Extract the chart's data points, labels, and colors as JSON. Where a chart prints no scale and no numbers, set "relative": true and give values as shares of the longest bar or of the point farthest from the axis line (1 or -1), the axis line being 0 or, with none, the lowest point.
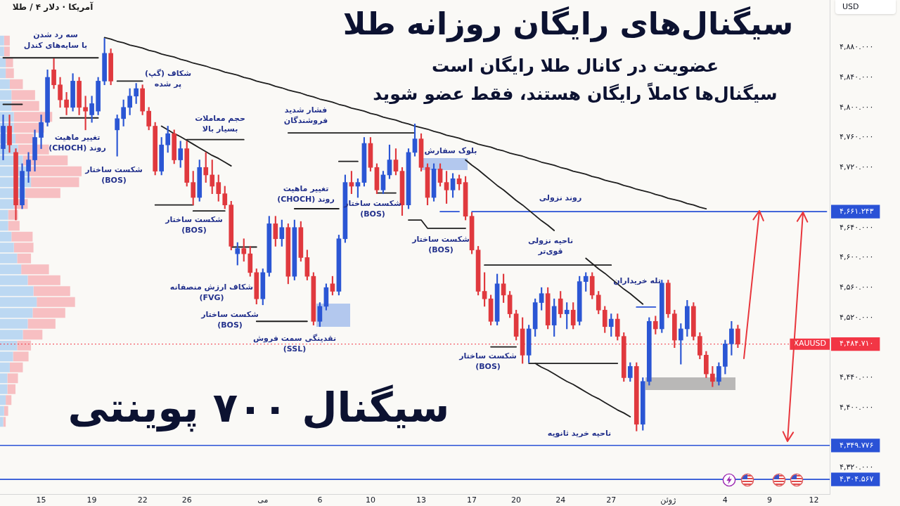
{
  "chart_data": [
    {
      "type": "candlestick",
      "title": "سیگنال‌های رایگان روزانه طلا",
      "subtitle": "عضویت در کانال طلا رایگان است\nسیگنال‌ها کاملاً رایگان هستند، فقط عضو شوید",
      "ylabel": "USD",
      "categories": [
        null,
        null,
        null,
        null,
        null,
        null,
        "15",
        null,
        null,
        null,
        null,
        null,
        null,
        null,
        "19",
        null,
        null,
        null,
        null,
        null,
        null,
        null,
        "22",
        null,
        null,
        null,
        null,
        null,
        null,
        "26",
        null,
        null,
        null,
        null,
        null,
        null,
        null,
        null,
        null,
        null,
        null,
        "می",
        null,
        null,
        null,
        null,
        null,
        null,
        null,
        null,
        "6",
        null,
        null,
        null,
        null,
        null,
        null,
        null,
        "10",
        null,
        null,
        null,
        null,
        null,
        null,
        null,
        "13",
        null,
        null,
        null,
        null,
        null,
        null,
        null,
        "17",
        null,
        null,
        null,
        null,
        null,
        null,
        "20",
        null,
        null,
        null,
        null,
        null,
        null,
        "24",
        null,
        null,
        null,
        null,
        null,
        null,
        null,
        "27",
        null,
        null,
        null,
        null,
        null,
        null,
        null,
        null,
        "ژوئن",
        null,
        null,
        null,
        null,
        null,
        null,
        null,
        null,
        "4",
        null,
        null,
        null,
        null,
        null,
        null,
        "9",
        null,
        null,
        null,
        null,
        null,
        null,
        "12",
        null,
        null
      ],
      "ohlc": [
        [
          4745,
          4790,
          4730,
          4775
        ],
        [
          4775,
          4790,
          4740,
          4750
        ],
        [
          4740,
          4745,
          4650,
          4670
        ],
        [
          4670,
          4725,
          4665,
          4715
        ],
        [
          4715,
          4740,
          4700,
          4730
        ],
        [
          4730,
          4770,
          4715,
          4760
        ],
        [
          4760,
          4790,
          4745,
          4780
        ],
        [
          4780,
          4850,
          4775,
          4840
        ],
        [
          4850,
          4865,
          4825,
          4830
        ],
        [
          4830,
          4840,
          4800,
          4810
        ],
        [
          4810,
          4820,
          4790,
          4800
        ],
        [
          4800,
          4845,
          4795,
          4835
        ],
        [
          4835,
          4840,
          4790,
          4800
        ],
        [
          4800,
          4815,
          4770,
          4795
        ],
        [
          4790,
          4815,
          4780,
          4805
        ],
        [
          4795,
          4840,
          4790,
          4835
        ],
        [
          4835,
          4892,
          4830,
          4872
        ],
        [
          4872,
          4878,
          4830,
          4835
        ],
        [
          4770,
          4790,
          4735,
          4785
        ],
        [
          4785,
          4810,
          4775,
          4800
        ],
        [
          4800,
          4825,
          4790,
          4815
        ],
        [
          4815,
          4832,
          4805,
          4825
        ],
        [
          4825,
          4830,
          4790,
          4795
        ],
        [
          4795,
          4800,
          4770,
          4775
        ],
        [
          4775,
          4780,
          4710,
          4715
        ],
        [
          4715,
          4760,
          4710,
          4750
        ],
        [
          4750,
          4775,
          4740,
          4765
        ],
        [
          4765,
          4770,
          4725,
          4730
        ],
        [
          4730,
          4755,
          4720,
          4745
        ],
        [
          4745,
          4755,
          4695,
          4700
        ],
        [
          4700,
          4715,
          4670,
          4680
        ],
        [
          4680,
          4730,
          4675,
          4720
        ],
        [
          4720,
          4740,
          4700,
          4710
        ],
        [
          4710,
          4730,
          4685,
          4695
        ],
        [
          4700,
          4710,
          4675,
          4685
        ],
        [
          4685,
          4695,
          4665,
          4670
        ],
        [
          4670,
          4675,
          4610,
          4615
        ],
        [
          4605,
          4620,
          4590,
          4612
        ],
        [
          4612,
          4625,
          4595,
          4605
        ],
        [
          4605,
          4615,
          4575,
          4580
        ],
        [
          4580,
          4585,
          4538,
          4545
        ],
        [
          4545,
          4585,
          4537,
          4580
        ],
        [
          4580,
          4655,
          4575,
          4645
        ],
        [
          4645,
          4655,
          4615,
          4625
        ],
        [
          4625,
          4650,
          4615,
          4640
        ],
        [
          4640,
          4645,
          4565,
          4575
        ],
        [
          4575,
          4650,
          4570,
          4640
        ],
        [
          4640,
          4648,
          4595,
          4600
        ],
        [
          4600,
          4610,
          4570,
          4575
        ],
        [
          4575,
          4580,
          4510,
          4515
        ],
        [
          4515,
          4540,
          4508,
          4535
        ],
        [
          4535,
          4565,
          4530,
          4560
        ],
        [
          4565,
          4575,
          4550,
          4555
        ],
        [
          4555,
          4630,
          4550,
          4625
        ],
        [
          4625,
          4710,
          4620,
          4700
        ],
        [
          4700,
          4715,
          4685,
          4695
        ],
        [
          4695,
          4705,
          4680,
          4700
        ],
        [
          4700,
          4760,
          4695,
          4752
        ],
        [
          4752,
          4760,
          4715,
          4720
        ],
        [
          4720,
          4725,
          4685,
          4690
        ],
        [
          4690,
          4715,
          4685,
          4710
        ],
        [
          4710,
          4750,
          4705,
          4730
        ],
        [
          4730,
          4745,
          4710,
          4715
        ],
        [
          4715,
          4720,
          4656,
          4670
        ],
        [
          4670,
          4745,
          4665,
          4740
        ],
        [
          4740,
          4778,
          4735,
          4758
        ],
        [
          4758,
          4765,
          4715,
          4720
        ],
        [
          4720,
          4725,
          4670,
          4680
        ],
        [
          4680,
          4725,
          4675,
          4718
        ],
        [
          4718,
          4725,
          4695,
          4700
        ],
        [
          4700,
          4715,
          4672,
          4690
        ],
        [
          4690,
          4712,
          4680,
          4705
        ],
        [
          4705,
          4710,
          4690,
          4698
        ],
        [
          4700,
          4708,
          4650,
          4655
        ],
        [
          4655,
          4660,
          4605,
          4610
        ],
        [
          4610,
          4615,
          4550,
          4555
        ],
        [
          4555,
          4580,
          4535,
          4545
        ],
        [
          4545,
          4550,
          4510,
          4515
        ],
        [
          4515,
          4578,
          4510,
          4565
        ],
        [
          4565,
          4578,
          4540,
          4550
        ],
        [
          4550,
          4555,
          4520,
          4525
        ],
        [
          4525,
          4530,
          4490,
          4495
        ],
        [
          4505,
          4520,
          4459,
          4470
        ],
        [
          4470,
          4510,
          4460,
          4505
        ],
        [
          4505,
          4545,
          4495,
          4540
        ],
        [
          4540,
          4560,
          4530,
          4552
        ],
        [
          4552,
          4560,
          4505,
          4510
        ],
        [
          4510,
          4545,
          4495,
          4535
        ],
        [
          4545,
          4555,
          4520,
          4525
        ],
        [
          4525,
          4540,
          4505,
          4530
        ],
        [
          4530,
          4540,
          4505,
          4510
        ],
        [
          4515,
          4575,
          4510,
          4568
        ],
        [
          4568,
          4580,
          4555,
          4575
        ],
        [
          4575,
          4580,
          4545,
          4550
        ],
        [
          4550,
          4555,
          4525,
          4530
        ],
        [
          4530,
          4535,
          4500,
          4508
        ],
        [
          4508,
          4525,
          4495,
          4518
        ],
        [
          4518,
          4525,
          4490,
          4495
        ],
        [
          4495,
          4500,
          4435,
          4440
        ],
        [
          4440,
          4460,
          4435,
          4455
        ],
        [
          4455,
          4460,
          4369,
          4378
        ],
        [
          4378,
          4440,
          4370,
          4435
        ],
        [
          4435,
          4520,
          4430,
          4515
        ],
        [
          4515,
          4522,
          4498,
          4505
        ],
        [
          4505,
          4570,
          4500,
          4566
        ],
        [
          4566,
          4570,
          4520,
          4525
        ],
        [
          4525,
          4530,
          4480,
          4490
        ],
        [
          4490,
          4512,
          4458,
          4505
        ],
        [
          4505,
          4543,
          4495,
          4535
        ],
        [
          4535,
          4540,
          4490,
          4495
        ],
        [
          4495,
          4500,
          4465,
          4470
        ],
        [
          4470,
          4475,
          4440,
          4445
        ],
        [
          4445,
          4455,
          4428,
          4435
        ],
        [
          4435,
          4460,
          4430,
          4455
        ],
        [
          4455,
          4490,
          4445,
          4485
        ],
        [
          4485,
          4515,
          4470,
          4505
        ],
        [
          4505,
          4510,
          4480,
          4484.71
        ],
        null,
        null,
        null,
        null,
        null,
        null,
        null,
        null,
        null,
        null,
        null,
        null,
        null,
        null
      ],
      "colors": [
        "#2b56d4",
        "#e0393e",
        "#e0393e",
        "#2b56d4",
        "#2b56d4",
        "#2b56d4",
        "#2b56d4",
        "#2b56d4",
        "#e0393e",
        "#e0393e",
        "#e0393e",
        "#2b56d4",
        "#e0393e",
        "#e0393e",
        "#2b56d4",
        "#2b56d4",
        "#2b56d4",
        "#e0393e",
        "#2b56d4",
        "#2b56d4",
        "#2b56d4",
        "#2b56d4",
        "#e0393e",
        "#e0393e",
        "#e0393e",
        "#2b56d4",
        "#2b56d4",
        "#e0393e",
        "#2b56d4",
        "#e0393e",
        "#e0393e",
        "#2b56d4",
        "#e0393e",
        "#e0393e",
        "#e0393e",
        "#e0393e",
        "#e0393e",
        "#2b56d4",
        "#e0393e",
        "#e0393e",
        "#e0393e",
        "#2b56d4",
        "#2b56d4",
        "#e0393e",
        "#2b56d4",
        "#e0393e",
        "#2b56d4",
        "#e0393e",
        "#e0393e",
        "#e0393e",
        "#2b56d4",
        "#2b56d4",
        "#e0393e",
        "#2b56d4",
        "#2b56d4",
        "#e0393e",
        "#2b56d4",
        "#2b56d4",
        "#e0393e",
        "#e0393e",
        "#2b56d4",
        "#2b56d4",
        "#e0393e",
        "#e0393e",
        "#2b56d4",
        "#2b56d4",
        "#e0393e",
        "#e0393e",
        "#2b56d4",
        "#e0393e",
        "#e0393e",
        "#2b56d4",
        "#e0393e",
        "#e0393e",
        "#e0393e",
        "#e0393e",
        "#e0393e",
        "#e0393e",
        "#2b56d4",
        "#e0393e",
        "#e0393e",
        "#e0393e",
        "#e0393e",
        "#2b56d4",
        "#2b56d4",
        "#2b56d4",
        "#e0393e",
        "#2b56d4",
        "#e0393e",
        "#2b56d4",
        "#e0393e",
        "#2b56d4",
        "#2b56d4",
        "#e0393e",
        "#e0393e",
        "#e0393e",
        "#2b56d4",
        "#e0393e",
        "#e0393e",
        "#2b56d4",
        "#e0393e",
        "#2b56d4",
        "#2b56d4",
        "#e0393e",
        "#2b56d4",
        "#e0393e",
        "#e0393e",
        "#2b56d4",
        "#2b56d4",
        "#e0393e",
        "#e0393e",
        "#e0393e",
        "#e0393e",
        "#2b56d4",
        "#2b56d4",
        "#2b56d4",
        "#e0393e",
        null,
        null,
        null,
        null,
        null,
        null,
        null,
        null,
        null,
        null,
        null,
        null,
        null,
        null
      ],
      "series": [
        {
          "type": "line",
          "color": "#1e1e1e",
          "values": [
            4866,
            4866,
            4866,
            4866,
            4866,
            4866,
            4866,
            4866,
            4866,
            4866,
            4866,
            4866,
            4866,
            4866,
            4866,
            4866,
            null,
            null,
            4835,
            4835,
            4835,
            4835,
            4835,
            null,
            4670,
            4670,
            4670,
            4670,
            4670,
            4670,
            4670,
            null,
            null,
            null,
            null,
            null,
            4614,
            4614,
            4614,
            4614,
            4614,
            null,
            null,
            null,
            null,
            null,
            4665,
            4665,
            4665,
            4665,
            4665,
            4665,
            4665,
            4665,
            null,
            null,
            null,
            null,
            null,
            4686,
            4686,
            4686,
            4686,
            null,
            4650,
            4650,
            4650,
            4639,
            4639,
            4639,
            4639,
            4639,
            4639,
            4639,
            null,
            null,
            null,
            4481,
            4481,
            4481,
            4481,
            4481,
            null,
            null,
            null,
            null,
            null,
            null,
            null,
            null,
            null,
            null,
            null,
            null,
            null,
            null,
            null,
            null,
            null,
            null,
            null,
            null,
            null,
            null,
            null,
            null,
            null,
            null,
            null,
            null,
            null,
            null,
            null,
            null,
            null,
            null,
            null,
            null,
            null,
            null,
            null,
            null,
            null,
            null,
            null,
            null,
            null,
            null,
            null,
            null,
            null
          ]
        },
        {
          "type": "line",
          "color": "#1e1e1e",
          "values": [
            4804,
            4804,
            4804,
            4804,
            null,
            null,
            null,
            null,
            null,
            4786,
            4786,
            4786,
            4786,
            4786,
            4786,
            4786,
            null,
            null,
            null,
            null,
            null,
            null,
            null,
            null,
            null,
            4775,
            4770,
            4765,
            4761,
            4756,
            4751,
            4746,
            4741,
            4736,
            4732,
            4727,
            4722,
            null,
            null,
            null,
            4515,
            4515,
            4515,
            4515,
            4515,
            4515,
            4515,
            4515,
            4515,
            null,
            null,
            null,
            null,
            4728,
            4728,
            4728,
            4728,
            null,
            null,
            null,
            null,
            null,
            null,
            null,
            null,
            null,
            null,
            null,
            null,
            null,
            null,
            null,
            null,
            4730,
            4723,
            4717,
            4710,
            4703,
            4696,
            4690,
            4683,
            4676,
            4670,
            4663,
            4656,
            4649,
            4643,
            4636,
            null,
            null,
            null,
            null,
            4599,
            4592,
            4585,
            4579,
            4572,
            4565,
            4558,
            4552,
            4545,
            4538,
            null,
            null,
            null,
            null,
            null,
            null,
            null,
            null,
            null,
            null,
            null,
            null,
            null,
            null,
            null,
            null,
            null,
            null,
            null,
            null,
            null,
            null,
            null,
            null,
            null,
            null,
            null,
            null,
            null
          ]
        },
        {
          "type": "line",
          "color": "#1e1e1e",
          "values": [
            null,
            null,
            null,
            null,
            null,
            null,
            null,
            null,
            null,
            null,
            null,
            null,
            null,
            null,
            null,
            null,
            null,
            null,
            null,
            null,
            null,
            null,
            null,
            null,
            null,
            null,
            null,
            null,
            null,
            4757,
            4757,
            4757,
            4757,
            4757,
            4757,
            4757,
            4757,
            4757,
            4757,
            null,
            null,
            null,
            null,
            null,
            null,
            4766,
            4766,
            4766,
            4766,
            4766,
            4766,
            4766,
            4766,
            4766,
            4766,
            4766,
            4766,
            4766,
            4766,
            4766,
            4766,
            4766,
            4766,
            4766,
            4766,
            4766,
            null,
            null,
            null,
            null,
            null,
            null,
            null,
            null,
            null,
            null,
            4590,
            4590,
            4590,
            4590,
            4590,
            4590,
            4590,
            4590,
            4590,
            4590,
            4590,
            4590,
            4590,
            4590,
            4590,
            4590,
            4590,
            4590,
            4590,
            4590,
            4590,
            null,
            null,
            null,
            null,
            null,
            null,
            null,
            null,
            null,
            null,
            null,
            null,
            null,
            null,
            null,
            null,
            null,
            null,
            null,
            null,
            null,
            null,
            null,
            null,
            null,
            null,
            null,
            null,
            null,
            null,
            null,
            null,
            null,
            null
          ]
        },
        {
          "type": "line",
          "color": "#1e1e1e",
          "values": [
            null,
            null,
            null,
            null,
            null,
            null,
            null,
            null,
            null,
            null,
            null,
            null,
            null,
            null,
            null,
            null,
            null,
            null,
            null,
            null,
            null,
            null,
            null,
            null,
            null,
            null,
            null,
            null,
            null,
            null,
            4662,
            4662,
            4662,
            4662,
            4662,
            4662,
            null,
            null,
            null,
            null,
            null,
            null,
            null,
            null,
            null,
            null,
            null,
            null,
            null,
            null,
            null,
            null,
            null,
            null,
            null,
            null,
            null,
            null,
            null,
            null,
            null,
            null,
            null,
            null,
            null,
            null,
            null,
            null,
            null,
            null,
            null,
            null,
            null,
            null,
            null,
            null,
            null,
            null,
            null,
            null,
            null,
            null,
            null,
            4459,
            4459,
            4459,
            4459,
            4459,
            4459,
            4459,
            4459,
            4459,
            4459,
            4459,
            4459,
            4459,
            4459,
            4459,
            null,
            null,
            null,
            null,
            null,
            null,
            null,
            null,
            null,
            null,
            null,
            null,
            null,
            null,
            null,
            null,
            null,
            null,
            null,
            null,
            null,
            null,
            null,
            null,
            null,
            null,
            null,
            null,
            null,
            null,
            null,
            null,
            null
          ]
        },
        {
          "type": "line",
          "color": "#1e1e1e",
          "values": [
            null,
            null,
            null,
            null,
            null,
            null,
            null,
            null,
            null,
            null,
            null,
            null,
            null,
            null,
            null,
            null,
            null,
            null,
            null,
            null,
            null,
            null,
            null,
            null,
            null,
            null,
            null,
            null,
            null,
            null,
            null,
            null,
            null,
            null,
            null,
            null,
            null,
            null,
            null,
            null,
            null,
            null,
            null,
            null,
            null,
            null,
            null,
            null,
            null,
            null,
            null,
            null,
            null,
            null,
            null,
            null,
            null,
            null,
            null,
            null,
            null,
            null,
            null,
            null,
            null,
            null,
            null,
            null,
            null,
            null,
            null,
            null,
            null,
            null,
            null,
            null,
            null,
            null,
            null,
            null,
            null,
            null,
            null,
            null,
            4459,
            4454,
            4450,
            4445,
            4440,
            4435,
            4431,
            4426,
            4421,
            4416,
            4412,
            4407,
            4402,
            4397,
            4393,
            4388,
            null,
            null,
            null,
            null,
            null,
            null,
            null,
            null,
            null,
            null,
            null,
            null,
            null,
            null,
            null,
            null,
            null,
            null,
            null,
            null,
            null,
            null,
            null,
            null,
            null,
            null,
            null,
            null,
            null,
            null,
            null
          ]
        },
        {
          "type": "line",
          "color": "#1e1e1e",
          "values": [
            null,
            null,
            null,
            null,
            null,
            null,
            null,
            null,
            null,
            null,
            null,
            null,
            null,
            null,
            null,
            null,
            4893,
            4891,
            4888,
            4886,
            4883,
            4881,
            4879,
            4876,
            4874,
            4871,
            4869,
            4867,
            4864,
            4862,
            4859,
            4857,
            4855,
            4852,
            4850,
            4847,
            4845,
            4843,
            4840,
            4838,
            4835,
            4833,
            4831,
            4828,
            4826,
            4823,
            4821,
            4819,
            4816,
            4814,
            4811,
            4809,
            4807,
            4804,
            4802,
            4799,
            4797,
            4795,
            4792,
            4790,
            4787,
            4785,
            4783,
            4780,
            4778,
            4775,
            4773,
            4771,
            4768,
            4766,
            4763,
            4761,
            4759,
            4756,
            4754,
            4751,
            4749,
            4747,
            4744,
            4742,
            4739,
            4737,
            4735,
            4732,
            4730,
            4727,
            4725,
            4723,
            4720,
            4718,
            4715,
            4713,
            4711,
            4708,
            4706,
            4703,
            4701,
            4699,
            4696,
            4694,
            4691,
            4689,
            4687,
            4684,
            4682,
            4679,
            4677,
            4675,
            4672,
            4670,
            4667,
            4665,
            null,
            null,
            null,
            null,
            null,
            null,
            null,
            null,
            null,
            null,
            null,
            null,
            null,
            null,
            null,
            null,
            null,
            null,
            null
          ]
        },
        {
          "type": "line",
          "color": "#2a52d6",
          "values": [
            null,
            null,
            null,
            null,
            null,
            null,
            null,
            null,
            null,
            null,
            null,
            null,
            null,
            null,
            null,
            null,
            null,
            null,
            null,
            null,
            null,
            null,
            null,
            null,
            null,
            null,
            null,
            null,
            null,
            null,
            null,
            null,
            null,
            null,
            null,
            null,
            null,
            null,
            null,
            null,
            null,
            null,
            null,
            null,
            null,
            null,
            null,
            null,
            null,
            null,
            null,
            null,
            null,
            null,
            null,
            null,
            null,
            null,
            null,
            null,
            null,
            null,
            null,
            null,
            null,
            null,
            null,
            null,
            null,
            null,
            null,
            null,
            null,
            null,
            null,
            null,
            null,
            null,
            null,
            null,
            null,
            null,
            null,
            null,
            null,
            null,
            null,
            null,
            null,
            null,
            null,
            null,
            null,
            null,
            null,
            null,
            null,
            null,
            null,
            null,
            4534,
            4534,
            4534,
            4534,
            null,
            null,
            null,
            null,
            null,
            null,
            null,
            null,
            null,
            null,
            null,
            null,
            null,
            null,
            null,
            null,
            null,
            null,
            null,
            null,
            null,
            null,
            null,
            null,
            null,
            null,
            null
          ]
        },
        {
          "type": "line",
          "color": "#2a52d6",
          "values": [
            null,
            null,
            null,
            null,
            null,
            null,
            null,
            null,
            null,
            null,
            null,
            null,
            null,
            null,
            null,
            null,
            null,
            null,
            null,
            null,
            null,
            null,
            null,
            null,
            null,
            null,
            null,
            null,
            null,
            null,
            null,
            null,
            null,
            null,
            null,
            null,
            null,
            null,
            null,
            null,
            null,
            null,
            null,
            null,
            null,
            null,
            null,
            null,
            null,
            null,
            null,
            null,
            null,
            null,
            null,
            null,
            null,
            null,
            null,
            null,
            null,
            null,
            null,
            null,
            null,
            null,
            null,
            null,
            null,
            4661.243,
            4661.243,
            4661.243,
            4661.243,
            null,
            4661.243,
            4661.243,
            4661.243,
            4661.243,
            4661.243,
            4661.243,
            4661.243,
            4661.243,
            4661.243,
            4661.243,
            4661.243,
            4661.243,
            4661.243,
            4661.243,
            4661.243,
            4661.243,
            4661.243,
            4661.243,
            4661.243,
            4661.243,
            4661.243,
            4661.243,
            4661.243,
            4661.243,
            4661.243,
            4661.243,
            4661.243,
            4661.243,
            4661.243,
            4661.243,
            4661.243,
            4661.243,
            4661.243,
            4661.243,
            4661.243,
            4661.243,
            4661.243,
            4661.243,
            4661.243,
            4661.243,
            4661.243,
            4661.243,
            4661.243,
            4661.243,
            4661.243,
            4661.243,
            4661.243,
            4661.243,
            4661.243,
            4661.243,
            4661.243,
            4661.243,
            4661.243,
            4661.243,
            4661.243,
            4661.243,
            4661.243
          ]
        }
      ],
      "ylim": [
        4285,
        4943
      ],
      "yticks": [
        {
          "value": 4880,
          "label": "۴,۸۸۰.۰۰۰"
        },
        {
          "value": 4840,
          "label": "۴,۸۴۰.۰۰۰"
        },
        {
          "value": 4800,
          "label": "۴,۸۰۰.۰۰۰"
        },
        {
          "value": 4760,
          "label": "۴,۷۶۰.۰۰۰"
        },
        {
          "value": 4720,
          "label": "۴,۷۲۰.۰۰۰"
        },
        {
          "value": 4661.243,
          "label": "۴,۶۶۱.۲۴۳"
        },
        {
          "value": 4640,
          "label": "۴,۶۴۰.۰۰۰"
        },
        {
          "value": 4600,
          "label": "۴,۶۰۰.۰۰۰"
        },
        {
          "value": 4560,
          "label": "۴,۵۶۰.۰۰۰"
        },
        {
          "value": 4520,
          "label": "۴,۵۲۰.۰۰۰"
        },
        {
          "value": 4484.71,
          "label": "۴,۴۸۴.۷۱۰"
        },
        {
          "value": 4440,
          "label": "۴,۴۴۰.۰۰۰"
        },
        {
          "value": 4400,
          "label": "۴,۴۰۰.۰۰۰"
        },
        {
          "value": 4349.776,
          "label": "۴,۳۴۹.۷۷۶"
        },
        {
          "value": 4320,
          "label": "۴,۳۲۰.۰۰۰"
        },
        {
          "value": 4304.567,
          "label": "۴,۳۰۴.۵۶۷"
        }
      ],
      "ref_lines": [
        {
          "axis": "y",
          "value": 4349.776,
          "color": "#2a52d6"
        },
        {
          "axis": "y",
          "value": 4304.567,
          "color": "#2a52d6"
        },
        {
          "axis": "y",
          "value": 4484.71,
          "label": "XAUUSD",
          "color": "#f23645",
          "line_style": "dotted"
        }
      ],
      "annotations": [
        "آمریکا · دلار ۴ / طلا",
        "سیگنال ۷۰۰ پوینتی",
        "سه رد شدن\nبا سایه‌های کندل",
        "شکاف (گپ)\nپر شده",
        "تغییر ماهیت\nروند (CHOCH)",
        "حجم معاملات\nبسیار بالا",
        "شکست ساختار\n(BOS)",
        "شکست ساختار\n(BOS)",
        "شکاف ارزش منصفانه\n(FVG)",
        "شکست ساختار\n(BOS)",
        "تغییر ماهیت\nروند (CHOCH)",
        "نقدینگی سمت فروش\n(SSL)",
        "فشار شدید\nفروشندگان",
        "شکست ساختار\n(BOS)",
        "بلوک سفارش",
        "شکست ساختار\n(BOS)",
        "روند نزولی",
        "ناحیه نزولی\nقوی‌تر",
        "تله خریداران",
        "شکست ساختار\n(BOS)",
        "ناحیه خرید ثانویه"
      ]
    },
    {
      "type": "bar",
      "orientation": "horizontal",
      "stacked": true,
      "relative": true,
      "tick_labels": false,
      "categories": [
        null,
        null,
        null,
        null,
        null,
        null,
        null,
        null,
        null,
        null,
        null,
        null,
        null,
        null,
        null,
        null,
        null,
        null,
        null,
        null,
        null,
        null,
        null,
        null,
        null,
        null,
        null,
        null,
        null,
        null,
        null,
        null,
        null,
        null,
        null,
        null
      ],
      "series": [
        {
          "color": "#bcd8f2",
          "values": [
            0.05,
            0.05,
            0.07,
            0.07,
            0.12,
            0.14,
            0.14,
            0.17,
            0.17,
            0.19,
            0.22,
            0.28,
            0.34,
            0.38,
            0.31,
            0.17,
            0.1,
            0.1,
            0.14,
            0.17,
            0.21,
            0.26,
            0.34,
            0.41,
            0.45,
            0.4,
            0.34,
            0.28,
            0.21,
            0.16,
            0.12,
            0.09,
            0.09,
            0.07,
            0.05,
            0.04
          ]
        },
        {
          "color": "#f7bfc2",
          "values": [
            0.07,
            0.07,
            0.09,
            0.1,
            0.16,
            0.29,
            0.34,
            0.47,
            0.37,
            0.22,
            0.38,
            0.55,
            0.66,
            0.59,
            0.43,
            0.17,
            0.12,
            0.14,
            0.26,
            0.24,
            0.17,
            0.34,
            0.4,
            0.45,
            0.47,
            0.4,
            0.34,
            0.24,
            0.17,
            0.19,
            0.16,
            0.13,
            0.1,
            0.07,
            0.05,
            0.03
          ]
        }
      ]
    }
  ]
}
